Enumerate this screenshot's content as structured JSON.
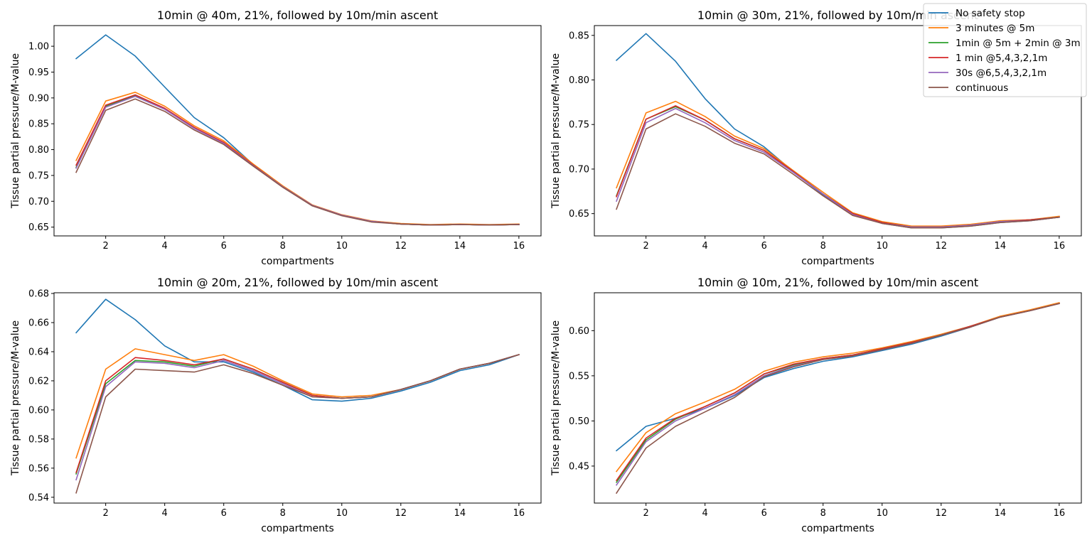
{
  "figure": {
    "legend_location": "top-right (overlapping top-right panel)"
  },
  "legend": [
    {
      "label": "No safety stop",
      "color": "#1f77b4"
    },
    {
      "label": "3 minutes @ 5m",
      "color": "#ff7f0e"
    },
    {
      "label": "1min @ 5m + 2min @ 3m",
      "color": "#2ca02c"
    },
    {
      "label": "1 min @5,4,3,2,1m",
      "color": "#d62728"
    },
    {
      "label": "30s @6,5,4,3,2,1m",
      "color": "#9467bd"
    },
    {
      "label": "continuous",
      "color": "#8c564b"
    }
  ],
  "chart_data": [
    {
      "type": "line",
      "title": "10min @ 40m, 21%, followed by 10m/min ascent",
      "xlabel": "compartments",
      "ylabel": "Tissue partial pressure/M-value",
      "xlim": [
        0.25,
        16.75
      ],
      "ylim": [
        0.633,
        1.04
      ],
      "xticks": [
        2,
        4,
        6,
        8,
        10,
        12,
        14,
        16
      ],
      "yticks": [
        0.65,
        0.7,
        0.75,
        0.8,
        0.85,
        0.9,
        0.95,
        1.0
      ],
      "ytick_labels": [
        "0.65",
        "0.70",
        "0.75",
        "0.80",
        "0.85",
        "0.90",
        "0.95",
        "1.00"
      ],
      "x": [
        1,
        2,
        3,
        4,
        5,
        6,
        7,
        8,
        9,
        10,
        11,
        12,
        13,
        14,
        15,
        16
      ],
      "series": [
        {
          "name": "No safety stop",
          "values": [
            0.976,
            1.022,
            0.981,
            0.921,
            0.862,
            0.823,
            0.771,
            0.729,
            0.692,
            0.673,
            0.661,
            0.656,
            0.654,
            0.655,
            0.654,
            0.655
          ]
        },
        {
          "name": "3 minutes @ 5m",
          "values": [
            0.779,
            0.894,
            0.911,
            0.884,
            0.846,
            0.817,
            0.772,
            0.73,
            0.693,
            0.674,
            0.662,
            0.657,
            0.655,
            0.656,
            0.655,
            0.656
          ]
        },
        {
          "name": "1min @ 5m + 2min @ 3m",
          "values": [
            0.766,
            0.884,
            0.904,
            0.879,
            0.842,
            0.813,
            0.77,
            0.728,
            0.692,
            0.673,
            0.661,
            0.656,
            0.654,
            0.655,
            0.654,
            0.655
          ]
        },
        {
          "name": "1 min @5,4,3,2,1m",
          "values": [
            0.77,
            0.886,
            0.906,
            0.88,
            0.843,
            0.814,
            0.77,
            0.728,
            0.692,
            0.673,
            0.661,
            0.656,
            0.654,
            0.655,
            0.654,
            0.655
          ]
        },
        {
          "name": "30s @6,5,4,3,2,1m",
          "values": [
            0.764,
            0.882,
            0.903,
            0.878,
            0.841,
            0.812,
            0.769,
            0.728,
            0.692,
            0.673,
            0.661,
            0.656,
            0.654,
            0.655,
            0.654,
            0.655
          ]
        },
        {
          "name": "continuous",
          "values": [
            0.756,
            0.876,
            0.898,
            0.874,
            0.838,
            0.81,
            0.768,
            0.727,
            0.691,
            0.672,
            0.66,
            0.656,
            0.654,
            0.655,
            0.654,
            0.655
          ]
        }
      ]
    },
    {
      "type": "line",
      "title": "10min @ 30m, 21%, followed by 10m/min ascent",
      "xlabel": "compartments",
      "ylabel": "Tissue partial pressure/M-value",
      "xlim": [
        0.25,
        16.75
      ],
      "ylim": [
        0.625,
        0.861
      ],
      "xticks": [
        2,
        4,
        6,
        8,
        10,
        12,
        14,
        16
      ],
      "yticks": [
        0.65,
        0.7,
        0.75,
        0.8,
        0.85
      ],
      "ytick_labels": [
        "0.65",
        "0.70",
        "0.75",
        "0.80",
        "0.85"
      ],
      "x": [
        1,
        2,
        3,
        4,
        5,
        6,
        7,
        8,
        9,
        10,
        11,
        12,
        13,
        14,
        15,
        16
      ],
      "series": [
        {
          "name": "No safety stop",
          "values": [
            0.822,
            0.852,
            0.821,
            0.779,
            0.745,
            0.725,
            0.697,
            0.671,
            0.649,
            0.639,
            0.634,
            0.634,
            0.636,
            0.64,
            0.642,
            0.646
          ]
        },
        {
          "name": "3 minutes @ 5m",
          "values": [
            0.679,
            0.763,
            0.776,
            0.759,
            0.737,
            0.723,
            0.698,
            0.674,
            0.651,
            0.641,
            0.636,
            0.636,
            0.638,
            0.642,
            0.643,
            0.647
          ]
        },
        {
          "name": "1min @ 5m + 2min @ 3m",
          "values": [
            0.67,
            0.756,
            0.77,
            0.755,
            0.734,
            0.721,
            0.697,
            0.672,
            0.65,
            0.64,
            0.635,
            0.635,
            0.637,
            0.641,
            0.643,
            0.646
          ]
        },
        {
          "name": "1 min @5,4,3,2,1m",
          "values": [
            0.669,
            0.756,
            0.771,
            0.755,
            0.734,
            0.721,
            0.697,
            0.672,
            0.65,
            0.64,
            0.635,
            0.635,
            0.637,
            0.641,
            0.643,
            0.646
          ]
        },
        {
          "name": "30s @6,5,4,3,2,1m",
          "values": [
            0.664,
            0.752,
            0.768,
            0.752,
            0.732,
            0.719,
            0.696,
            0.672,
            0.649,
            0.639,
            0.635,
            0.635,
            0.637,
            0.641,
            0.642,
            0.646
          ]
        },
        {
          "name": "continuous",
          "values": [
            0.655,
            0.745,
            0.762,
            0.748,
            0.729,
            0.717,
            0.694,
            0.67,
            0.648,
            0.639,
            0.634,
            0.634,
            0.636,
            0.64,
            0.642,
            0.646
          ]
        }
      ]
    },
    {
      "type": "line",
      "title": "10min @ 20m, 21%, followed by 10m/min ascent",
      "xlabel": "compartments",
      "ylabel": "Tissue partial pressure/M-value",
      "xlim": [
        0.25,
        16.75
      ],
      "ylim": [
        0.536,
        0.6805
      ],
      "xticks": [
        2,
        4,
        6,
        8,
        10,
        12,
        14,
        16
      ],
      "yticks": [
        0.54,
        0.56,
        0.58,
        0.6,
        0.62,
        0.64,
        0.66,
        0.68
      ],
      "ytick_labels": [
        "0.54",
        "0.56",
        "0.58",
        "0.60",
        "0.62",
        "0.64",
        "0.66",
        "0.68"
      ],
      "x": [
        1,
        2,
        3,
        4,
        5,
        6,
        7,
        8,
        9,
        10,
        11,
        12,
        13,
        14,
        15,
        16
      ],
      "series": [
        {
          "name": "No safety stop",
          "values": [
            0.653,
            0.676,
            0.662,
            0.644,
            0.633,
            0.633,
            0.626,
            0.617,
            0.607,
            0.606,
            0.608,
            0.613,
            0.619,
            0.627,
            0.631,
            0.638
          ]
        },
        {
          "name": "3 minutes @ 5m",
          "values": [
            0.567,
            0.628,
            0.642,
            0.638,
            0.634,
            0.638,
            0.63,
            0.62,
            0.611,
            0.609,
            0.61,
            0.614,
            0.62,
            0.628,
            0.632,
            0.638
          ]
        },
        {
          "name": "1min @ 5m + 2min @ 3m",
          "values": [
            0.556,
            0.618,
            0.634,
            0.633,
            0.63,
            0.635,
            0.628,
            0.619,
            0.61,
            0.608,
            0.609,
            0.614,
            0.62,
            0.628,
            0.632,
            0.638
          ]
        },
        {
          "name": "1 min @5,4,3,2,1m",
          "values": [
            0.557,
            0.62,
            0.636,
            0.634,
            0.631,
            0.635,
            0.628,
            0.619,
            0.61,
            0.608,
            0.609,
            0.614,
            0.62,
            0.628,
            0.632,
            0.638
          ]
        },
        {
          "name": "30s @6,5,4,3,2,1m",
          "values": [
            0.552,
            0.616,
            0.633,
            0.632,
            0.629,
            0.634,
            0.627,
            0.618,
            0.609,
            0.608,
            0.609,
            0.614,
            0.62,
            0.628,
            0.632,
            0.638
          ]
        },
        {
          "name": "continuous",
          "values": [
            0.543,
            0.609,
            0.628,
            0.627,
            0.626,
            0.631,
            0.625,
            0.617,
            0.609,
            0.608,
            0.609,
            0.614,
            0.62,
            0.628,
            0.632,
            0.638
          ]
        }
      ]
    },
    {
      "type": "line",
      "title": "10min @ 10m, 21%, followed by 10m/min ascent",
      "xlabel": "compartments",
      "ylabel": "Tissue partial pressure/M-value",
      "xlim": [
        0.25,
        16.75
      ],
      "ylim": [
        0.409,
        0.642
      ],
      "xticks": [
        2,
        4,
        6,
        8,
        10,
        12,
        14,
        16
      ],
      "yticks": [
        0.45,
        0.5,
        0.55,
        0.6
      ],
      "ytick_labels": [
        "0.45",
        "0.50",
        "0.55",
        "0.60"
      ],
      "x": [
        1,
        2,
        3,
        4,
        5,
        6,
        7,
        8,
        9,
        10,
        11,
        12,
        13,
        14,
        15,
        16
      ],
      "series": [
        {
          "name": "No safety stop",
          "values": [
            0.467,
            0.494,
            0.503,
            0.514,
            0.528,
            0.548,
            0.558,
            0.566,
            0.571,
            0.578,
            0.585,
            0.594,
            0.604,
            0.615,
            0.622,
            0.63
          ]
        },
        {
          "name": "3 minutes @ 5m",
          "values": [
            0.444,
            0.487,
            0.508,
            0.521,
            0.535,
            0.555,
            0.565,
            0.571,
            0.575,
            0.581,
            0.588,
            0.596,
            0.605,
            0.616,
            0.623,
            0.631
          ]
        },
        {
          "name": "1min @ 5m + 2min @ 3m",
          "values": [
            0.432,
            0.479,
            0.502,
            0.516,
            0.531,
            0.552,
            0.562,
            0.569,
            0.573,
            0.58,
            0.587,
            0.595,
            0.605,
            0.615,
            0.622,
            0.63
          ]
        },
        {
          "name": "1 min @5,4,3,2,1m",
          "values": [
            0.434,
            0.481,
            0.503,
            0.516,
            0.531,
            0.552,
            0.563,
            0.569,
            0.573,
            0.58,
            0.587,
            0.595,
            0.605,
            0.615,
            0.622,
            0.63
          ]
        },
        {
          "name": "30s @6,5,4,3,2,1m",
          "values": [
            0.429,
            0.477,
            0.5,
            0.514,
            0.529,
            0.55,
            0.561,
            0.568,
            0.572,
            0.579,
            0.586,
            0.595,
            0.604,
            0.615,
            0.622,
            0.63
          ]
        },
        {
          "name": "continuous",
          "values": [
            0.42,
            0.47,
            0.494,
            0.51,
            0.526,
            0.549,
            0.56,
            0.568,
            0.572,
            0.579,
            0.586,
            0.595,
            0.604,
            0.615,
            0.622,
            0.63
          ]
        }
      ]
    }
  ]
}
